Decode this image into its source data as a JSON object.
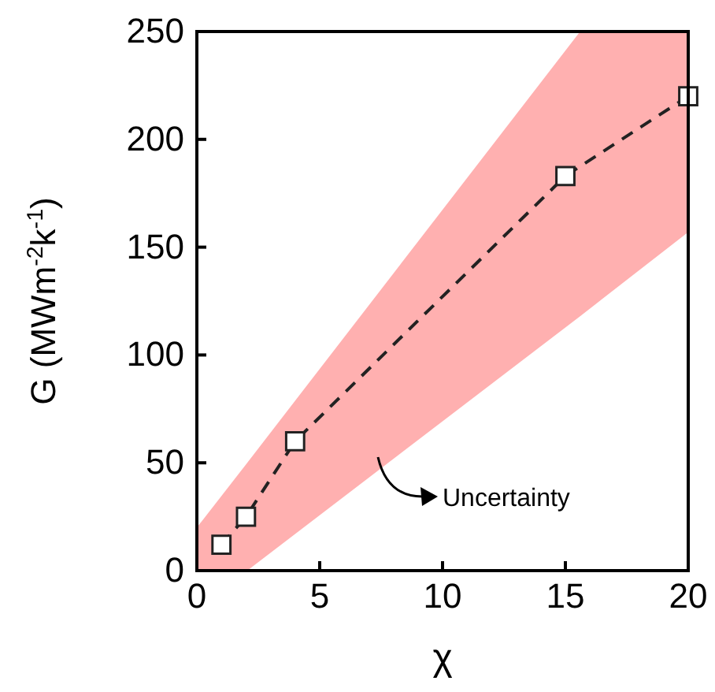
{
  "chart_data": {
    "type": "line",
    "xlabel": "χ",
    "ylabel": "G (MWm$^{-2}$k$^{-1}$)",
    "xlim": [
      0,
      20
    ],
    "ylim": [
      0,
      250
    ],
    "xticks": [
      0,
      5,
      10,
      15,
      20
    ],
    "yticks": [
      0,
      50,
      100,
      150,
      200,
      250
    ],
    "grid": false,
    "marker": "square",
    "line_style": "dashed",
    "series": [
      {
        "type": "area",
        "color": "#ffb0b0",
        "x": [
          0,
          2.05,
          15.6,
          20
        ],
        "values": [
          null,
          null,
          null,
          null
        ],
        "lower": [
          0,
          0,
          118,
          157
        ],
        "upper": [
          20,
          50,
          250,
          250
        ]
      },
      {
        "type": "line",
        "color": "#222222",
        "x": [
          1,
          2,
          4,
          15,
          20
        ],
        "values": [
          12,
          25,
          60,
          183,
          220
        ]
      }
    ],
    "annotations": [
      "Uncertainty"
    ]
  }
}
